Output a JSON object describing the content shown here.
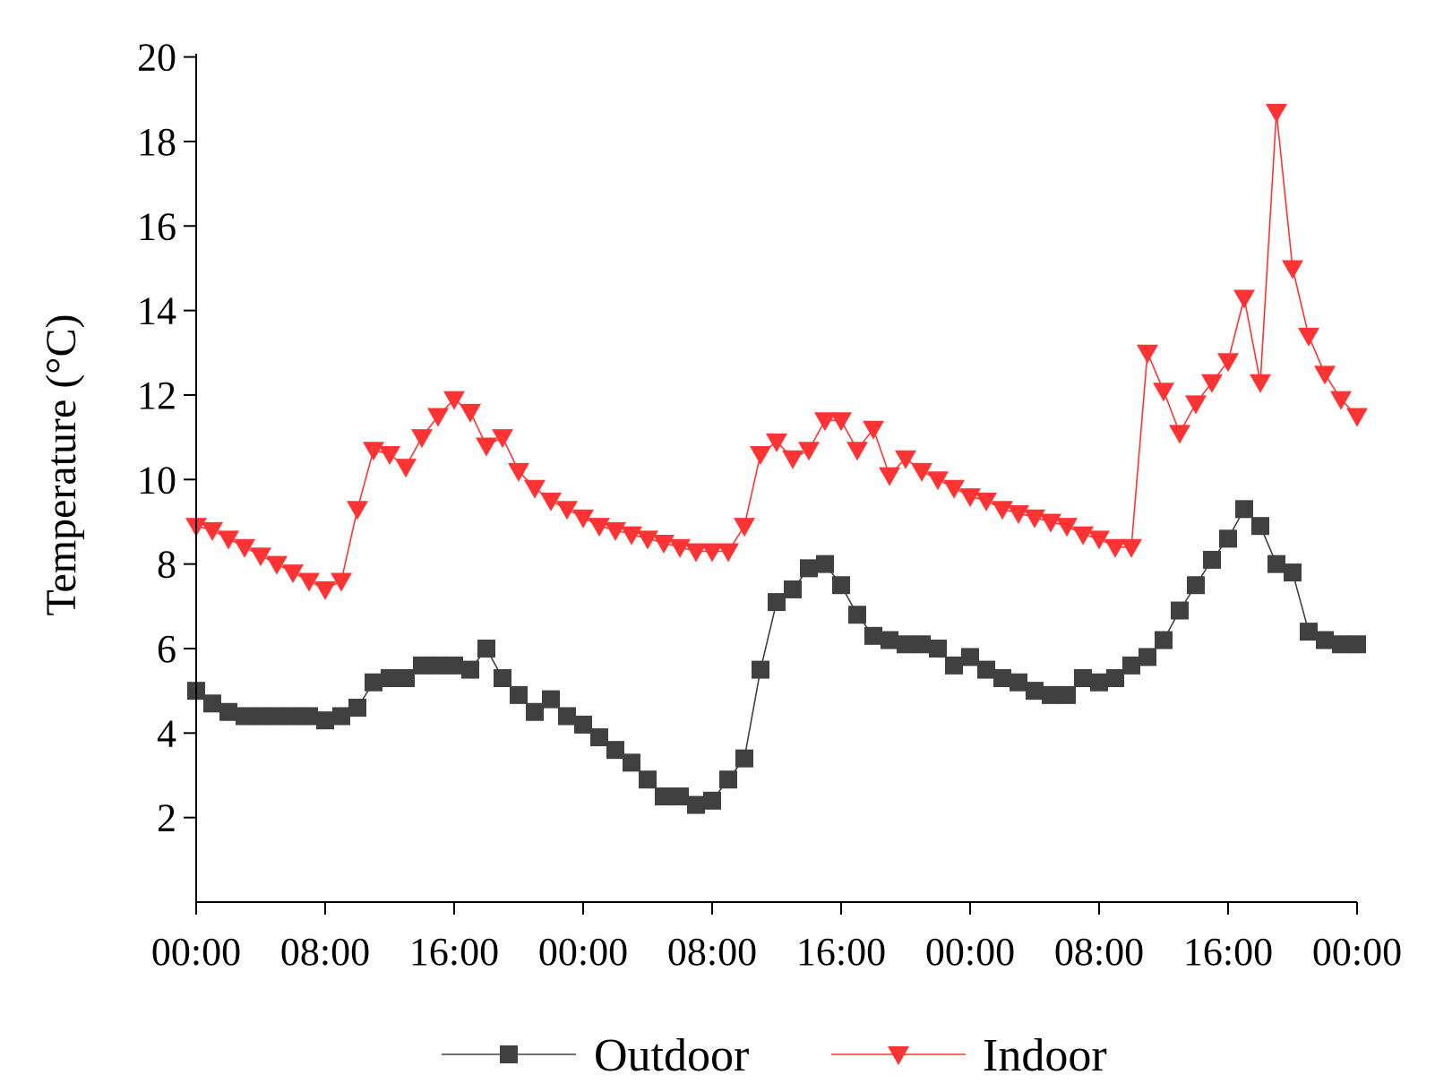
{
  "chart_data": {
    "type": "line",
    "title": "",
    "xlabel": "",
    "ylabel": "Temperature (°C)",
    "ylim": [
      0.0,
      20.5
    ],
    "yticks": [
      2,
      4,
      6,
      8,
      10,
      12,
      14,
      16,
      18,
      20
    ],
    "xlim": [
      0,
      72
    ],
    "x_tick_labels": [
      "00:00",
      "08:00",
      "16:00",
      "00:00",
      "08:00",
      "16:00",
      "00:00",
      "08:00",
      "16:00",
      "00:00"
    ],
    "x_ticks_hours": [
      0,
      8,
      16,
      24,
      32,
      40,
      48,
      56,
      64,
      72
    ],
    "x_unit": "hours elapsed",
    "legend_position": "bottom-center",
    "series": [
      {
        "name": "Outdoor",
        "marker": "square",
        "color": "#404040",
        "x": [
          0,
          1,
          2,
          3,
          4,
          5,
          6,
          7,
          8,
          9,
          10,
          11,
          12,
          13,
          14,
          15,
          16,
          17,
          18,
          19,
          20,
          21,
          22,
          23,
          24,
          25,
          26,
          27,
          28,
          29,
          30,
          31,
          32,
          33,
          34,
          35,
          36,
          37,
          38,
          39,
          40,
          41,
          42,
          43,
          44,
          45,
          46,
          47,
          48,
          49,
          50,
          51,
          52,
          53,
          54,
          55,
          56,
          57,
          58,
          59,
          60,
          61,
          62,
          63,
          64,
          65,
          66,
          67,
          68,
          69,
          70,
          71,
          72
        ],
        "values": [
          5.0,
          4.7,
          4.5,
          4.4,
          4.4,
          4.4,
          4.4,
          4.4,
          4.3,
          4.4,
          4.6,
          5.2,
          5.3,
          5.3,
          5.6,
          5.6,
          5.6,
          5.5,
          6.0,
          5.3,
          4.9,
          4.5,
          4.8,
          4.4,
          4.2,
          3.9,
          3.6,
          3.3,
          2.9,
          2.5,
          2.5,
          2.3,
          2.4,
          2.9,
          3.4,
          5.5,
          7.1,
          7.4,
          7.9,
          8.0,
          7.5,
          6.8,
          6.3,
          6.2,
          6.1,
          6.1,
          6.0,
          5.6,
          5.8,
          5.5,
          5.3,
          5.2,
          5.0,
          4.9,
          4.9,
          5.3,
          5.2,
          5.3,
          5.6,
          5.8,
          6.2,
          6.9,
          7.5,
          8.1,
          8.6,
          9.3,
          8.9,
          8.0,
          7.8,
          6.4,
          6.2,
          6.1,
          6.1
        ]
      },
      {
        "name": "Indoor",
        "marker": "triangle-down",
        "color": "#ff3333",
        "x": [
          0,
          1,
          2,
          3,
          4,
          5,
          6,
          7,
          8,
          9,
          10,
          11,
          12,
          13,
          14,
          15,
          16,
          17,
          18,
          19,
          20,
          21,
          22,
          23,
          24,
          25,
          26,
          27,
          28,
          29,
          30,
          31,
          32,
          33,
          34,
          35,
          36,
          37,
          38,
          39,
          40,
          41,
          42,
          43,
          44,
          45,
          46,
          47,
          48,
          49,
          50,
          51,
          52,
          53,
          54,
          55,
          56,
          57,
          58,
          59,
          60,
          61,
          62,
          63,
          64,
          65,
          66,
          67,
          68,
          69,
          70,
          71,
          72
        ],
        "values": [
          8.9,
          8.8,
          8.6,
          8.4,
          8.2,
          8.0,
          7.8,
          7.6,
          7.4,
          7.6,
          9.3,
          10.7,
          10.6,
          10.3,
          11.0,
          11.5,
          11.9,
          11.6,
          10.8,
          11.0,
          10.2,
          9.8,
          9.5,
          9.3,
          9.1,
          8.9,
          8.8,
          8.7,
          8.6,
          8.5,
          8.4,
          8.3,
          8.3,
          8.3,
          8.9,
          10.6,
          10.9,
          10.5,
          10.7,
          11.4,
          11.4,
          10.7,
          11.2,
          10.1,
          10.5,
          10.2,
          10.0,
          9.8,
          9.6,
          9.5,
          9.3,
          9.2,
          9.1,
          9.0,
          8.9,
          8.7,
          8.6,
          8.4,
          8.4,
          13.0,
          12.1,
          11.1,
          11.8,
          12.3,
          12.8,
          14.3,
          12.3,
          18.7,
          15.0,
          13.4,
          12.5,
          11.9,
          11.5
        ]
      }
    ]
  }
}
